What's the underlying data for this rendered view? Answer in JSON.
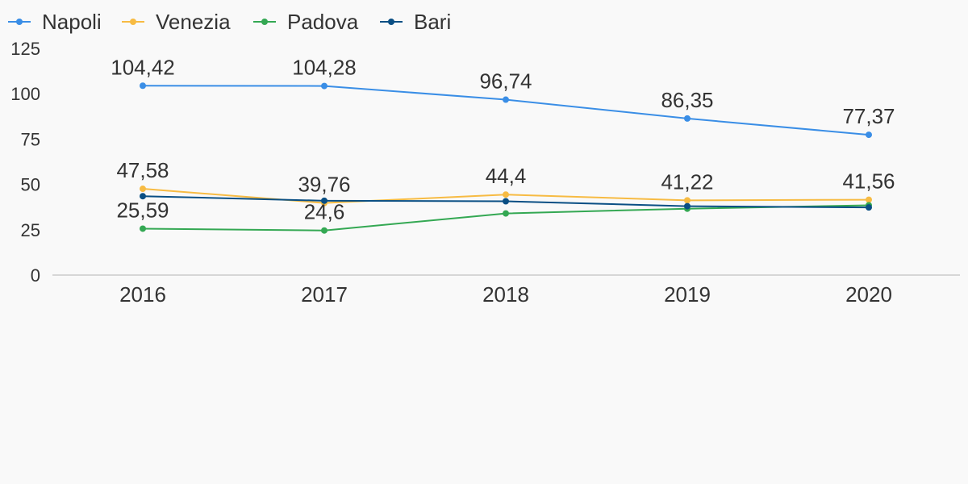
{
  "chart_data": {
    "type": "line",
    "categories": [
      "2016",
      "2017",
      "2018",
      "2019",
      "2020"
    ],
    "ylim": [
      0,
      125
    ],
    "yticks": [
      0,
      25,
      50,
      75,
      100,
      125
    ],
    "grid": false,
    "legend_position": "top-left",
    "series": [
      {
        "name": "Napoli",
        "color": "#3a8ee6",
        "values": [
          104.42,
          104.28,
          96.74,
          86.35,
          77.37
        ],
        "labels": [
          "104,42",
          "104,28",
          "96,74",
          "86,35",
          "77,37"
        ]
      },
      {
        "name": "Venezia",
        "color": "#f7bb43",
        "values": [
          47.58,
          39.76,
          44.4,
          41.22,
          41.56
        ],
        "labels": [
          "47,58",
          "39,76",
          "44,4",
          "41,22",
          "41,56"
        ]
      },
      {
        "name": "Padova",
        "color": "#34a853",
        "values": [
          25.59,
          24.6,
          34.0,
          36.6,
          38.5
        ],
        "labels": [
          "25,59",
          "24,6",
          null,
          null,
          null
        ]
      },
      {
        "name": "Bari",
        "color": "#0a4f84",
        "values": [
          43.5,
          41.0,
          40.7,
          38.0,
          37.3
        ],
        "labels": [
          null,
          null,
          null,
          null,
          null
        ]
      }
    ]
  }
}
